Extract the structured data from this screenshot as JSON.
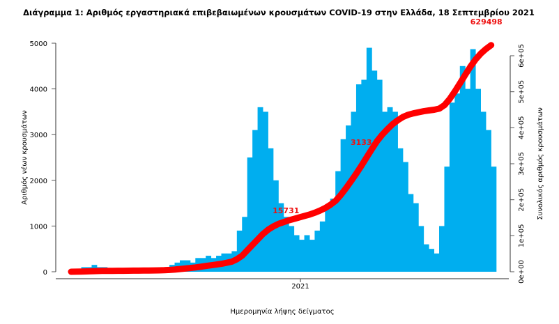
{
  "chart_data": {
    "type": "bar+line",
    "title": "Διάγραμμα 1: Αριθμός εργαστηριακά επιβεβαιωμένων κρουσμάτων COVID-19 στην Ελλάδα, 18 Σεπτεμβρίου 2021",
    "xlabel": "Ημερομηνία λήψης δείγματος",
    "ylabel": "Αριθμός νέων κρουσμάτων",
    "y2label": "Συνολικός αριθμός κρουσμάτων",
    "x_ticks": [
      "2021"
    ],
    "ylim": [
      0,
      5000
    ],
    "y_ticks": [
      "0",
      "1000",
      "2000",
      "3000",
      "4000",
      "5000"
    ],
    "y2lim": [
      0,
      600000
    ],
    "y2_ticks": [
      "0e+00",
      "1e+05",
      "2e+05",
      "3e+05",
      "4e+05",
      "5e+05",
      "6e+05"
    ],
    "grid": false,
    "colors": {
      "bars": "#00AEEF",
      "cumulative": "#FF0000",
      "annotations": "#EE1111"
    },
    "x": [
      "2020-02-26",
      "2020-03-04",
      "2020-03-11",
      "2020-03-18",
      "2020-03-25",
      "2020-04-01",
      "2020-04-08",
      "2020-04-15",
      "2020-04-22",
      "2020-04-29",
      "2020-05-06",
      "2020-05-13",
      "2020-05-20",
      "2020-05-27",
      "2020-06-03",
      "2020-06-10",
      "2020-06-17",
      "2020-06-24",
      "2020-07-01",
      "2020-07-08",
      "2020-07-15",
      "2020-07-22",
      "2020-07-29",
      "2020-08-05",
      "2020-08-12",
      "2020-08-19",
      "2020-08-26",
      "2020-09-02",
      "2020-09-09",
      "2020-09-16",
      "2020-09-23",
      "2020-09-30",
      "2020-10-07",
      "2020-10-14",
      "2020-10-21",
      "2020-10-28",
      "2020-11-04",
      "2020-11-11",
      "2020-11-18",
      "2020-11-25",
      "2020-12-02",
      "2020-12-09",
      "2020-12-16",
      "2020-12-23",
      "2020-12-30",
      "2021-01-06",
      "2021-01-13",
      "2021-01-20",
      "2021-01-27",
      "2021-02-03",
      "2021-02-10",
      "2021-02-17",
      "2021-02-24",
      "2021-03-03",
      "2021-03-10",
      "2021-03-17",
      "2021-03-24",
      "2021-03-31",
      "2021-04-07",
      "2021-04-14",
      "2021-04-21",
      "2021-04-28",
      "2021-05-05",
      "2021-05-12",
      "2021-05-19",
      "2021-05-26",
      "2021-06-02",
      "2021-06-09",
      "2021-06-16",
      "2021-06-23",
      "2021-06-30",
      "2021-07-07",
      "2021-07-14",
      "2021-07-21",
      "2021-07-28",
      "2021-08-04",
      "2021-08-11",
      "2021-08-18",
      "2021-08-25",
      "2021-09-01",
      "2021-09-08",
      "2021-09-15"
    ],
    "series": [
      {
        "type": "bar",
        "axis": "left",
        "values": [
          10,
          50,
          100,
          100,
          150,
          100,
          100,
          50,
          30,
          20,
          20,
          20,
          20,
          30,
          30,
          40,
          50,
          50,
          100,
          150,
          200,
          250,
          250,
          200,
          300,
          300,
          350,
          300,
          350,
          400,
          400,
          450,
          900,
          1200,
          2500,
          3100,
          3600,
          3500,
          2700,
          2000,
          1500,
          1200,
          1000,
          800,
          700,
          800,
          700,
          900,
          1100,
          1400,
          1600,
          2200,
          2900,
          3200,
          3500,
          4100,
          4200,
          4900,
          4400,
          4200,
          3500,
          3600,
          3500,
          2700,
          2400,
          1700,
          1500,
          1000,
          600,
          500,
          400,
          1000,
          2300,
          3700,
          3900,
          4500,
          4000,
          4870,
          4000,
          3500,
          3100,
          2300
        ]
      },
      {
        "type": "line",
        "axis": "right",
        "values": [
          0,
          100,
          500,
          1000,
          1500,
          2000,
          2300,
          2500,
          2600,
          2700,
          2800,
          2900,
          3000,
          3100,
          3200,
          3400,
          3600,
          3900,
          4300,
          5000,
          6000,
          7500,
          9000,
          10500,
          12000,
          14000,
          16000,
          18000,
          20000,
          22000,
          25000,
          28000,
          35000,
          45000,
          60000,
          75000,
          90000,
          105000,
          117000,
          126000,
          133000,
          138000,
          143000,
          147000,
          151000,
          155000,
          159000,
          164000,
          170000,
          177000,
          186000,
          197000,
          213000,
          232000,
          252000,
          273000,
          295000,
          318000,
          341000,
          363000,
          381000,
          396000,
          410000,
          421000,
          430000,
          436000,
          440000,
          443000,
          446000,
          448000,
          450000,
          453000,
          463000,
          480000,
          501000,
          524000,
          547000,
          570000,
          590000,
          606000,
          619000,
          629498
        ]
      }
    ],
    "annotations": [
      {
        "text": "15731",
        "x": "2020-12-30"
      },
      {
        "text": "3133",
        "x": "2021-04-07"
      },
      {
        "text": "629498",
        "x": "2021-09-15"
      }
    ]
  }
}
